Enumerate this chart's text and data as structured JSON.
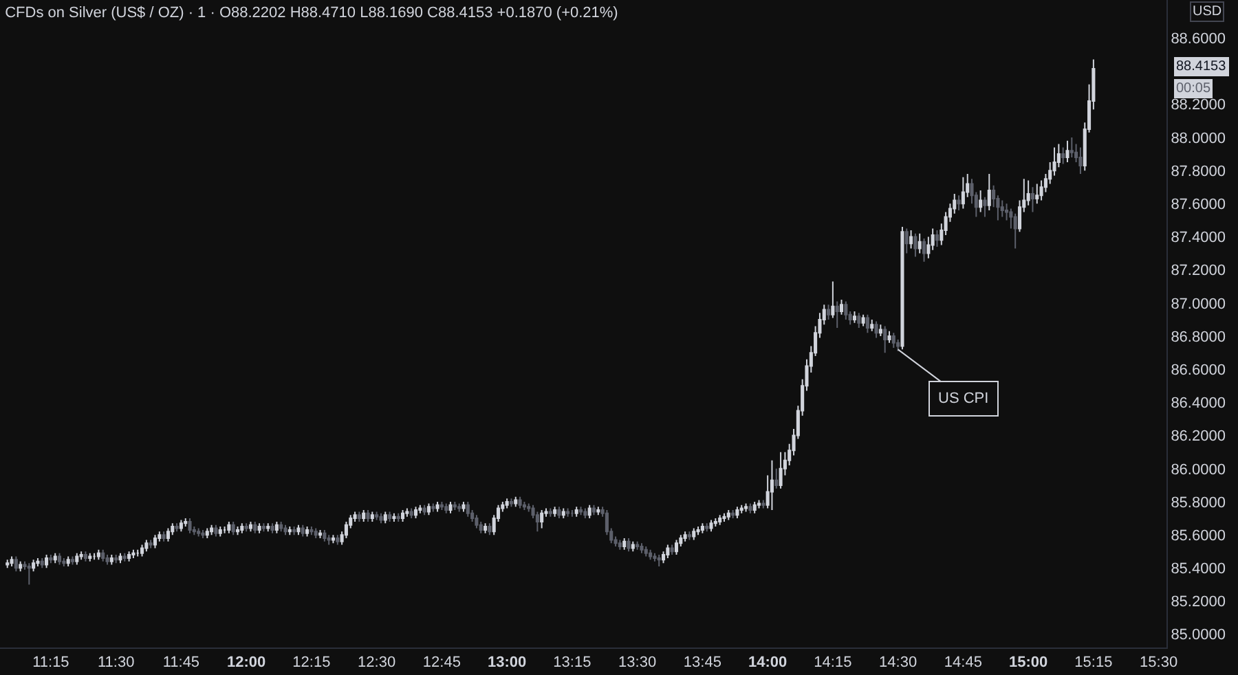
{
  "chart_data": {
    "type": "candlestick",
    "title": "CFDs on Silver (US$ / OZ) · 1 · O88.2202 H88.4710 L88.1690 C88.4153 +0.1870 (+0.21%)",
    "annotations": [
      {
        "text": "US CPI",
        "x": 14.5,
        "y": 86.72
      },
      "88.4153",
      "00:05",
      "USD"
    ],
    "x": [
      11.0833,
      11.1,
      11.1167,
      11.1333,
      11.15,
      11.1667,
      11.1833,
      11.2,
      11.2167,
      11.2333,
      11.25,
      11.2667,
      11.2833,
      11.3,
      11.3167,
      11.3333,
      11.35,
      11.3667,
      11.3833,
      11.4,
      11.4167,
      11.4333,
      11.45,
      11.4667,
      11.4833,
      11.5,
      11.5167,
      11.5333,
      11.55,
      11.5667,
      11.5833,
      11.6,
      11.6167,
      11.6333,
      11.65,
      11.6667,
      11.6833,
      11.7,
      11.7167,
      11.7333,
      11.75,
      11.7667,
      11.7833,
      11.8,
      11.8167,
      11.8333,
      11.85,
      11.8667,
      11.8833,
      11.9,
      11.9167,
      11.9333,
      11.95,
      11.9667,
      11.9833,
      12,
      12.0167,
      12.0333,
      12.05,
      12.0667,
      12.0833,
      12.1,
      12.1167,
      12.1333,
      12.15,
      12.1667,
      12.1833,
      12.2,
      12.2167,
      12.2333,
      12.25,
      12.2667,
      12.2833,
      12.3,
      12.3167,
      12.3333,
      12.35,
      12.3667,
      12.3833,
      12.4,
      12.4167,
      12.4333,
      12.45,
      12.4667,
      12.4833,
      12.5,
      12.5167,
      12.5333,
      12.55,
      12.5667,
      12.5833,
      12.6,
      12.6167,
      12.6333,
      12.65,
      12.6667,
      12.6833,
      12.7,
      12.7167,
      12.7333,
      12.75,
      12.7667,
      12.7833,
      12.8,
      12.8167,
      12.8333,
      12.85,
      12.8667,
      12.8833,
      12.9,
      12.9167,
      12.9333,
      12.95,
      12.9667,
      12.9833,
      13,
      13.0167,
      13.0333,
      13.05,
      13.0667,
      13.0833,
      13.1,
      13.1167,
      13.1333,
      13.15,
      13.1667,
      13.1833,
      13.2,
      13.2167,
      13.2333,
      13.25,
      13.2667,
      13.2833,
      13.3,
      13.3167,
      13.3333,
      13.35,
      13.3667,
      13.3833,
      13.4,
      13.4167,
      13.4333,
      13.45,
      13.4667,
      13.4833,
      13.5,
      13.5167,
      13.5333,
      13.55,
      13.5667,
      13.5833,
      13.6,
      13.6167,
      13.6333,
      13.65,
      13.6667,
      13.6833,
      13.7,
      13.7167,
      13.7333,
      13.75,
      13.7667,
      13.7833,
      13.8,
      13.8167,
      13.8333,
      13.85,
      13.8667,
      13.8833,
      13.9,
      13.9167,
      13.9333,
      13.95,
      13.9667,
      13.9833,
      14,
      14.0167,
      14.0333,
      14.05,
      14.0667,
      14.0833,
      14.1,
      14.1167,
      14.1333,
      14.15,
      14.1667,
      14.1833,
      14.2,
      14.2167,
      14.2333,
      14.25,
      14.2667,
      14.2833,
      14.3,
      14.3167,
      14.3333,
      14.35,
      14.3667,
      14.3833,
      14.4,
      14.4167,
      14.4333,
      14.45,
      14.4667,
      14.4833,
      14.5,
      14.5167,
      14.5333,
      14.55,
      14.5667,
      14.5833,
      14.6,
      14.6167,
      14.6333,
      14.65,
      14.6667,
      14.6833,
      14.7,
      14.7167,
      14.7333,
      14.75,
      14.7667,
      14.7833,
      14.8,
      14.8167,
      14.8333,
      14.85,
      14.8667,
      14.8833,
      14.9,
      14.9167,
      14.9333,
      14.95,
      14.9667,
      14.9833,
      15,
      15.0167,
      15.0333,
      15.05,
      15.0667,
      15.0833,
      15.1,
      15.1167,
      15.1333,
      15.15,
      15.1667,
      15.1833,
      15.2,
      15.2167,
      15.2333,
      15.25
    ],
    "ohlc": [
      [
        85.42,
        85.45,
        85.4,
        85.43
      ],
      [
        85.43,
        85.47,
        85.41,
        85.45
      ],
      [
        85.45,
        85.47,
        85.38,
        85.4
      ],
      [
        85.4,
        85.44,
        85.38,
        85.42
      ],
      [
        85.42,
        85.44,
        85.39,
        85.41
      ],
      [
        85.41,
        85.43,
        85.3,
        85.4
      ],
      [
        85.4,
        85.45,
        85.38,
        85.43
      ],
      [
        85.43,
        85.46,
        85.41,
        85.44
      ],
      [
        85.44,
        85.46,
        85.4,
        85.42
      ],
      [
        85.42,
        85.48,
        85.4,
        85.46
      ],
      [
        85.46,
        85.48,
        85.43,
        85.45
      ],
      [
        85.45,
        85.49,
        85.43,
        85.47
      ],
      [
        85.47,
        85.49,
        85.42,
        85.44
      ],
      [
        85.44,
        85.46,
        85.41,
        85.43
      ],
      [
        85.43,
        85.47,
        85.41,
        85.45
      ],
      [
        85.45,
        85.47,
        85.42,
        85.44
      ],
      [
        85.44,
        85.49,
        85.42,
        85.47
      ],
      [
        85.47,
        85.5,
        85.45,
        85.48
      ],
      [
        85.48,
        85.5,
        85.44,
        85.46
      ],
      [
        85.46,
        85.49,
        85.44,
        85.47
      ],
      [
        85.47,
        85.49,
        85.45,
        85.47
      ],
      [
        85.47,
        85.51,
        85.45,
        85.49
      ],
      [
        85.49,
        85.51,
        85.44,
        85.46
      ],
      [
        85.46,
        85.48,
        85.42,
        85.44
      ],
      [
        85.44,
        85.48,
        85.42,
        85.46
      ],
      [
        85.46,
        85.48,
        85.43,
        85.45
      ],
      [
        85.45,
        85.49,
        85.43,
        85.47
      ],
      [
        85.47,
        85.49,
        85.44,
        85.46
      ],
      [
        85.46,
        85.5,
        85.44,
        85.48
      ],
      [
        85.48,
        85.51,
        85.46,
        85.49
      ],
      [
        85.49,
        85.51,
        85.47,
        85.49
      ],
      [
        85.49,
        85.54,
        85.47,
        85.52
      ],
      [
        85.52,
        85.57,
        85.5,
        85.55
      ],
      [
        85.55,
        85.57,
        85.52,
        85.54
      ],
      [
        85.54,
        85.6,
        85.52,
        85.58
      ],
      [
        85.58,
        85.62,
        85.56,
        85.6
      ],
      [
        85.6,
        85.62,
        85.56,
        85.58
      ],
      [
        85.58,
        85.64,
        85.56,
        85.62
      ],
      [
        85.62,
        85.67,
        85.6,
        85.65
      ],
      [
        85.65,
        85.67,
        85.62,
        85.64
      ],
      [
        85.64,
        85.69,
        85.62,
        85.67
      ],
      [
        85.67,
        85.7,
        85.65,
        85.68
      ],
      [
        85.68,
        85.7,
        85.61,
        85.63
      ],
      [
        85.63,
        85.65,
        85.6,
        85.62
      ],
      [
        85.62,
        85.64,
        85.59,
        85.61
      ],
      [
        85.61,
        85.63,
        85.58,
        85.6
      ],
      [
        85.6,
        85.64,
        85.58,
        85.62
      ],
      [
        85.62,
        85.66,
        85.6,
        85.64
      ],
      [
        85.64,
        85.66,
        85.59,
        85.61
      ],
      [
        85.61,
        85.65,
        85.59,
        85.63
      ],
      [
        85.63,
        85.65,
        85.61,
        85.63
      ],
      [
        85.63,
        85.68,
        85.61,
        85.66
      ],
      [
        85.66,
        85.68,
        85.6,
        85.62
      ],
      [
        85.62,
        85.65,
        85.6,
        85.63
      ],
      [
        85.63,
        85.67,
        85.61,
        85.65
      ],
      [
        85.65,
        85.67,
        85.62,
        85.64
      ],
      [
        85.64,
        85.68,
        85.62,
        85.66
      ],
      [
        85.66,
        85.68,
        85.61,
        85.63
      ],
      [
        85.63,
        85.67,
        85.61,
        85.65
      ],
      [
        85.65,
        85.67,
        85.62,
        85.64
      ],
      [
        85.64,
        85.67,
        85.62,
        85.65
      ],
      [
        85.65,
        85.67,
        85.61,
        85.63
      ],
      [
        85.63,
        85.68,
        85.61,
        85.66
      ],
      [
        85.66,
        85.68,
        85.62,
        85.64
      ],
      [
        85.64,
        85.66,
        85.6,
        85.62
      ],
      [
        85.62,
        85.65,
        85.6,
        85.63
      ],
      [
        85.63,
        85.65,
        85.6,
        85.62
      ],
      [
        85.62,
        85.66,
        85.6,
        85.64
      ],
      [
        85.64,
        85.66,
        85.59,
        85.61
      ],
      [
        85.61,
        85.65,
        85.59,
        85.63
      ],
      [
        85.63,
        85.65,
        85.6,
        85.62
      ],
      [
        85.62,
        85.64,
        85.58,
        85.6
      ],
      [
        85.6,
        85.63,
        85.58,
        85.61
      ],
      [
        85.61,
        85.63,
        85.56,
        85.58
      ],
      [
        85.58,
        85.6,
        85.54,
        85.57
      ],
      [
        85.57,
        85.6,
        85.55,
        85.58
      ],
      [
        85.58,
        85.6,
        85.54,
        85.56
      ],
      [
        85.56,
        85.62,
        85.54,
        85.6
      ],
      [
        85.6,
        85.68,
        85.58,
        85.66
      ],
      [
        85.66,
        85.72,
        85.64,
        85.7
      ],
      [
        85.7,
        85.74,
        85.68,
        85.72
      ],
      [
        85.72,
        85.74,
        85.68,
        85.7
      ],
      [
        85.7,
        85.75,
        85.68,
        85.73
      ],
      [
        85.73,
        85.75,
        85.68,
        85.7
      ],
      [
        85.7,
        85.74,
        85.68,
        85.72
      ],
      [
        85.72,
        85.74,
        85.69,
        85.71
      ],
      [
        85.71,
        85.73,
        85.67,
        85.69
      ],
      [
        85.69,
        85.74,
        85.67,
        85.72
      ],
      [
        85.72,
        85.74,
        85.68,
        85.7
      ],
      [
        85.7,
        85.73,
        85.68,
        85.71
      ],
      [
        85.71,
        85.73,
        85.68,
        85.7
      ],
      [
        85.7,
        85.75,
        85.68,
        85.73
      ],
      [
        85.73,
        85.76,
        85.71,
        85.74
      ],
      [
        85.74,
        85.76,
        85.7,
        85.72
      ],
      [
        85.72,
        85.77,
        85.7,
        85.75
      ],
      [
        85.75,
        85.78,
        85.73,
        85.76
      ],
      [
        85.76,
        85.78,
        85.72,
        85.74
      ],
      [
        85.74,
        85.79,
        85.72,
        85.77
      ],
      [
        85.77,
        85.79,
        85.74,
        85.76
      ],
      [
        85.76,
        85.8,
        85.74,
        85.78
      ],
      [
        85.78,
        85.8,
        85.75,
        85.77
      ],
      [
        85.77,
        85.79,
        85.73,
        85.75
      ],
      [
        85.75,
        85.8,
        85.73,
        85.78
      ],
      [
        85.78,
        85.8,
        85.75,
        85.77
      ],
      [
        85.77,
        85.79,
        85.74,
        85.76
      ],
      [
        85.76,
        85.8,
        85.74,
        85.78
      ],
      [
        85.78,
        85.8,
        85.71,
        85.73
      ],
      [
        85.73,
        85.75,
        85.68,
        85.7
      ],
      [
        85.7,
        85.72,
        85.64,
        85.66
      ],
      [
        85.66,
        85.68,
        85.61,
        85.63
      ],
      [
        85.63,
        85.67,
        85.61,
        85.65
      ],
      [
        85.65,
        85.67,
        85.6,
        85.62
      ],
      [
        85.62,
        85.72,
        85.6,
        85.7
      ],
      [
        85.7,
        85.78,
        85.68,
        85.76
      ],
      [
        85.76,
        85.8,
        85.74,
        85.78
      ],
      [
        85.78,
        85.82,
        85.76,
        85.8
      ],
      [
        85.8,
        85.82,
        85.77,
        85.79
      ],
      [
        85.79,
        85.83,
        85.77,
        85.81
      ],
      [
        85.81,
        85.83,
        85.76,
        85.78
      ],
      [
        85.78,
        85.8,
        85.75,
        85.77
      ],
      [
        85.77,
        85.79,
        85.74,
        85.76
      ],
      [
        85.76,
        85.78,
        85.7,
        85.72
      ],
      [
        85.72,
        85.74,
        85.62,
        85.68
      ],
      [
        85.68,
        85.75,
        85.64,
        85.73
      ],
      [
        85.73,
        85.76,
        85.71,
        85.74
      ],
      [
        85.74,
        85.76,
        85.71,
        85.73
      ],
      [
        85.73,
        85.77,
        85.71,
        85.75
      ],
      [
        85.75,
        85.77,
        85.7,
        85.72
      ],
      [
        85.72,
        85.76,
        85.7,
        85.74
      ],
      [
        85.74,
        85.76,
        85.71,
        85.73
      ],
      [
        85.73,
        85.75,
        85.71,
        85.73
      ],
      [
        85.73,
        85.77,
        85.71,
        85.75
      ],
      [
        85.75,
        85.77,
        85.72,
        85.74
      ],
      [
        85.74,
        85.76,
        85.7,
        85.72
      ],
      [
        85.72,
        85.78,
        85.7,
        85.76
      ],
      [
        85.76,
        85.78,
        85.72,
        85.74
      ],
      [
        85.74,
        85.77,
        85.72,
        85.75
      ],
      [
        85.75,
        85.77,
        85.71,
        85.73
      ],
      [
        85.73,
        85.75,
        85.6,
        85.62
      ],
      [
        85.62,
        85.64,
        85.55,
        85.57
      ],
      [
        85.57,
        85.59,
        85.53,
        85.55
      ],
      [
        85.55,
        85.57,
        85.51,
        85.53
      ],
      [
        85.53,
        85.58,
        85.51,
        85.56
      ],
      [
        85.56,
        85.58,
        85.5,
        85.52
      ],
      [
        85.52,
        85.56,
        85.5,
        85.54
      ],
      [
        85.54,
        85.56,
        85.51,
        85.53
      ],
      [
        85.53,
        85.55,
        85.49,
        85.51
      ],
      [
        85.51,
        85.53,
        85.47,
        85.49
      ],
      [
        85.49,
        85.51,
        85.45,
        85.47
      ],
      [
        85.47,
        85.49,
        85.44,
        85.46
      ],
      [
        85.46,
        85.48,
        85.41,
        85.45
      ],
      [
        85.45,
        85.5,
        85.43,
        85.48
      ],
      [
        85.48,
        85.54,
        85.46,
        85.52
      ],
      [
        85.52,
        85.54,
        85.48,
        85.5
      ],
      [
        85.5,
        85.57,
        85.48,
        85.55
      ],
      [
        85.55,
        85.6,
        85.53,
        85.58
      ],
      [
        85.58,
        85.62,
        85.56,
        85.6
      ],
      [
        85.6,
        85.62,
        85.57,
        85.59
      ],
      [
        85.59,
        85.64,
        85.57,
        85.62
      ],
      [
        85.62,
        85.65,
        85.6,
        85.63
      ],
      [
        85.63,
        85.67,
        85.61,
        85.65
      ],
      [
        85.65,
        85.67,
        85.62,
        85.64
      ],
      [
        85.64,
        85.69,
        85.62,
        85.67
      ],
      [
        85.67,
        85.7,
        85.65,
        85.68
      ],
      [
        85.68,
        85.72,
        85.66,
        85.7
      ],
      [
        85.7,
        85.73,
        85.68,
        85.71
      ],
      [
        85.71,
        85.75,
        85.69,
        85.73
      ],
      [
        85.73,
        85.75,
        85.7,
        85.72
      ],
      [
        85.72,
        85.77,
        85.7,
        85.75
      ],
      [
        85.75,
        85.78,
        85.73,
        85.76
      ],
      [
        85.76,
        85.79,
        85.74,
        85.77
      ],
      [
        85.77,
        85.79,
        85.73,
        85.75
      ],
      [
        85.75,
        85.8,
        85.73,
        85.78
      ],
      [
        85.78,
        85.81,
        85.76,
        85.79
      ],
      [
        85.79,
        85.81,
        85.76,
        85.78
      ],
      [
        85.78,
        85.96,
        85.76,
        85.86
      ],
      [
        85.86,
        86.05,
        85.75,
        85.93
      ],
      [
        85.93,
        86.0,
        85.88,
        85.9
      ],
      [
        85.9,
        86.1,
        85.88,
        86.0
      ],
      [
        86.0,
        86.1,
        85.96,
        86.05
      ],
      [
        86.05,
        86.15,
        86.02,
        86.11
      ],
      [
        86.11,
        86.24,
        86.08,
        86.2
      ],
      [
        86.2,
        86.38,
        86.18,
        86.35
      ],
      [
        86.35,
        86.54,
        86.32,
        86.5
      ],
      [
        86.5,
        86.66,
        86.47,
        86.62
      ],
      [
        86.62,
        86.74,
        86.58,
        86.7
      ],
      [
        86.7,
        86.86,
        86.68,
        86.82
      ],
      [
        86.82,
        86.94,
        86.79,
        86.9
      ],
      [
        86.9,
        86.99,
        86.87,
        86.96
      ],
      [
        86.96,
        86.99,
        86.9,
        86.93
      ],
      [
        86.93,
        87.13,
        86.91,
        86.98
      ],
      [
        86.98,
        87.01,
        86.85,
        86.95
      ],
      [
        86.95,
        87.02,
        86.93,
        86.99
      ],
      [
        86.99,
        87.01,
        86.9,
        86.93
      ],
      [
        86.93,
        86.95,
        86.87,
        86.9
      ],
      [
        86.9,
        86.95,
        86.88,
        86.92
      ],
      [
        86.92,
        86.94,
        86.85,
        86.88
      ],
      [
        86.88,
        86.93,
        86.86,
        86.91
      ],
      [
        86.91,
        86.93,
        86.82,
        86.85
      ],
      [
        86.85,
        86.9,
        86.83,
        86.87
      ],
      [
        86.87,
        86.89,
        86.79,
        86.82
      ],
      [
        86.82,
        86.87,
        86.8,
        86.84
      ],
      [
        86.84,
        86.86,
        86.7,
        86.78
      ],
      [
        86.78,
        86.83,
        86.76,
        86.8
      ],
      [
        86.8,
        86.82,
        86.73,
        86.76
      ],
      [
        86.76,
        86.78,
        86.71,
        86.74
      ],
      [
        86.74,
        87.46,
        86.72,
        87.43
      ],
      [
        87.43,
        87.45,
        87.3,
        87.36
      ],
      [
        87.36,
        87.44,
        87.33,
        87.4
      ],
      [
        87.4,
        87.42,
        87.28,
        87.33
      ],
      [
        87.33,
        87.42,
        87.3,
        87.37
      ],
      [
        87.37,
        87.39,
        87.25,
        87.3
      ],
      [
        87.3,
        87.4,
        87.27,
        87.35
      ],
      [
        87.35,
        87.45,
        87.32,
        87.41
      ],
      [
        87.41,
        87.44,
        87.34,
        87.38
      ],
      [
        87.38,
        87.48,
        87.35,
        87.44
      ],
      [
        87.44,
        87.55,
        87.41,
        87.52
      ],
      [
        87.52,
        87.6,
        87.49,
        87.57
      ],
      [
        87.57,
        87.66,
        87.54,
        87.62
      ],
      [
        87.62,
        87.65,
        87.56,
        87.6
      ],
      [
        87.6,
        87.76,
        87.57,
        87.67
      ],
      [
        87.67,
        87.78,
        87.64,
        87.72
      ],
      [
        87.72,
        87.75,
        87.6,
        87.65
      ],
      [
        87.65,
        87.67,
        87.52,
        87.58
      ],
      [
        87.58,
        87.68,
        87.55,
        87.62
      ],
      [
        87.62,
        87.64,
        87.52,
        87.59
      ],
      [
        87.59,
        87.78,
        87.56,
        87.68
      ],
      [
        87.68,
        87.71,
        87.58,
        87.63
      ],
      [
        87.63,
        87.65,
        87.5,
        87.58
      ],
      [
        87.58,
        87.62,
        87.52,
        87.56
      ],
      [
        87.56,
        87.6,
        87.5,
        87.55
      ],
      [
        87.55,
        87.57,
        87.45,
        87.52
      ],
      [
        87.52,
        87.54,
        87.33,
        87.45
      ],
      [
        87.45,
        87.62,
        87.43,
        87.58
      ],
      [
        87.58,
        87.75,
        87.55,
        87.62
      ],
      [
        87.62,
        87.74,
        87.59,
        87.66
      ],
      [
        87.66,
        87.7,
        87.55,
        87.63
      ],
      [
        87.63,
        87.72,
        87.6,
        87.65
      ],
      [
        87.65,
        87.74,
        87.62,
        87.7
      ],
      [
        87.7,
        87.78,
        87.67,
        87.75
      ],
      [
        87.75,
        87.85,
        87.72,
        87.8
      ],
      [
        87.8,
        87.94,
        87.77,
        87.85
      ],
      [
        87.85,
        87.96,
        87.82,
        87.9
      ],
      [
        87.9,
        87.94,
        87.84,
        87.88
      ],
      [
        87.88,
        87.98,
        87.85,
        87.92
      ],
      [
        87.92,
        88.0,
        87.88,
        87.91
      ],
      [
        87.91,
        87.96,
        87.85,
        87.88
      ],
      [
        87.88,
        87.94,
        87.78,
        87.83
      ],
      [
        87.83,
        88.09,
        87.8,
        88.05
      ],
      [
        88.05,
        88.32,
        88.03,
        88.22
      ],
      [
        88.2202,
        88.471,
        88.169,
        88.4153
      ]
    ],
    "xlim": [
      11.055,
      15.53
    ],
    "xticks": [
      {
        "value": 11.25,
        "label": "11:15"
      },
      {
        "value": 11.5,
        "label": "11:30"
      },
      {
        "value": 11.75,
        "label": "11:45"
      },
      {
        "value": 12,
        "label": "12:00"
      },
      {
        "value": 12.25,
        "label": "12:15"
      },
      {
        "value": 12.5,
        "label": "12:30"
      },
      {
        "value": 12.75,
        "label": "12:45"
      },
      {
        "value": 13,
        "label": "13:00"
      },
      {
        "value": 13.25,
        "label": "13:15"
      },
      {
        "value": 13.5,
        "label": "13:30"
      },
      {
        "value": 13.75,
        "label": "13:45"
      },
      {
        "value": 14,
        "label": "14:00"
      },
      {
        "value": 14.25,
        "label": "14:15"
      },
      {
        "value": 14.5,
        "label": "14:30"
      },
      {
        "value": 14.75,
        "label": "14:45"
      },
      {
        "value": 15,
        "label": "15:00"
      },
      {
        "value": 15.25,
        "label": "15:15"
      },
      {
        "value": 15.5,
        "label": "15:30"
      }
    ],
    "ylim": [
      84.92,
      88.83
    ],
    "yticks": [
      {
        "value": 85,
        "label": "85.0000"
      },
      {
        "value": 85.2,
        "label": "85.2000"
      },
      {
        "value": 85.4,
        "label": "85.4000"
      },
      {
        "value": 85.6,
        "label": "85.6000"
      },
      {
        "value": 85.8,
        "label": "85.8000"
      },
      {
        "value": 86,
        "label": "86.0000"
      },
      {
        "value": 86.2,
        "label": "86.2000"
      },
      {
        "value": 86.4,
        "label": "86.4000"
      },
      {
        "value": 86.6,
        "label": "86.6000"
      },
      {
        "value": 86.8,
        "label": "86.8000"
      },
      {
        "value": 87,
        "label": "87.0000"
      },
      {
        "value": 87.2,
        "label": "87.2000"
      },
      {
        "value": 87.4,
        "label": "87.4000"
      },
      {
        "value": 87.6,
        "label": "87.6000"
      },
      {
        "value": 87.8,
        "label": "87.8000"
      },
      {
        "value": 88,
        "label": "88.0000"
      },
      {
        "value": 88.2,
        "label": "88.2000"
      },
      {
        "value": 88.6,
        "label": "88.6000"
      }
    ]
  }
}
